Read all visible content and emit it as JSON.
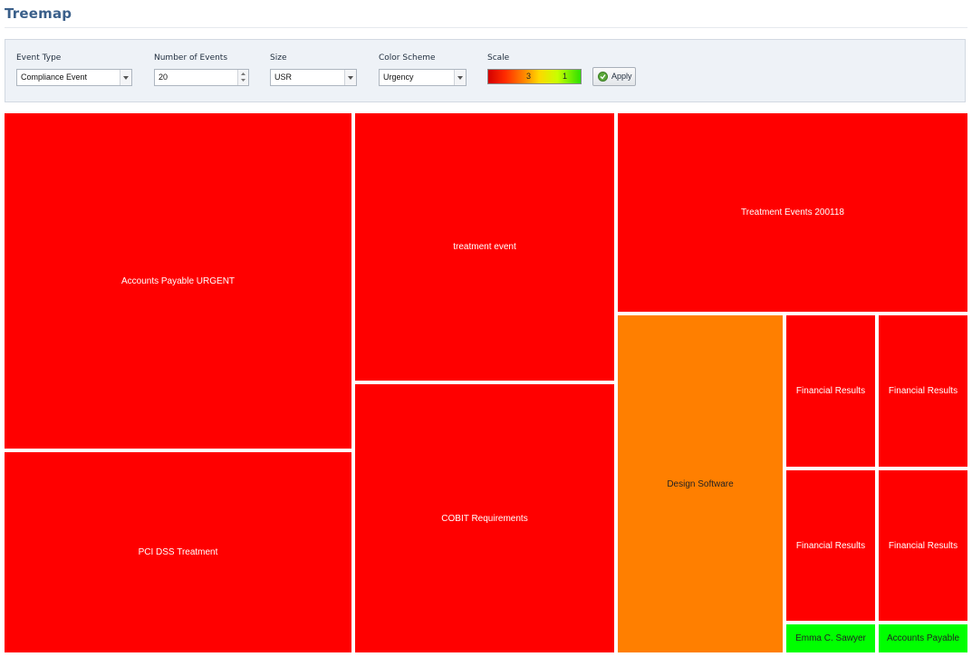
{
  "page": {
    "title": "Treemap"
  },
  "filters": {
    "event_type": {
      "label": "Event Type",
      "value": "Compliance Event"
    },
    "number_of_events": {
      "label": "Number of Events",
      "value": "20"
    },
    "size": {
      "label": "Size",
      "value": "USR"
    },
    "color_scheme": {
      "label": "Color Scheme",
      "value": "Urgency"
    },
    "scale": {
      "label": "Scale",
      "low_mark": "3",
      "high_mark": "1"
    },
    "apply_label": "Apply"
  },
  "colors": {
    "urgent": "#ff0000",
    "medium": "#ff7f00",
    "low": "#00ff00",
    "title": "#3a5f8a",
    "toolbar_bg": "#eef2f7"
  },
  "icons": [
    "chevron-down-icon",
    "spinner-up-icon",
    "spinner-down-icon",
    "check-circle-icon"
  ],
  "treemap": {
    "tiles": [
      {
        "label": "Accounts Payable URGENT",
        "urgency": "urgent"
      },
      {
        "label": "PCI DSS Treatment",
        "urgency": "urgent"
      },
      {
        "label": "treatment event",
        "urgency": "urgent"
      },
      {
        "label": "COBIT Requirements",
        "urgency": "urgent"
      },
      {
        "label": "Treatment Events 200118",
        "urgency": "urgent"
      },
      {
        "label": "Design Software",
        "urgency": "medium"
      },
      {
        "label": "Financial Results",
        "urgency": "urgent"
      },
      {
        "label": "Financial Results",
        "urgency": "urgent"
      },
      {
        "label": "Financial Results",
        "urgency": "urgent"
      },
      {
        "label": "Financial Results",
        "urgency": "urgent"
      },
      {
        "label": "Emma C. Sawyer",
        "urgency": "low"
      },
      {
        "label": "Accounts Payable",
        "urgency": "low"
      }
    ]
  }
}
